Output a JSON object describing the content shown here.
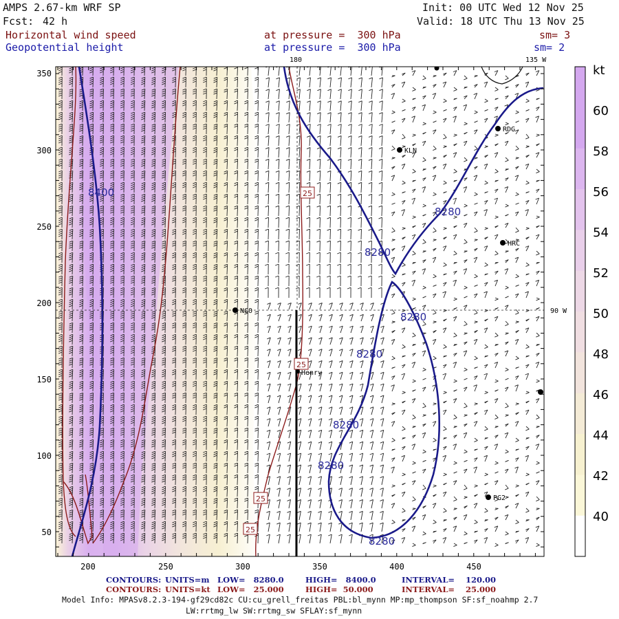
{
  "header": {
    "model": "AMPS 2.67-km WRF SP",
    "fcst_label": "Fcst:",
    "fcst_value": "42 h",
    "init": "Init: 00 UTC Wed 12 Nov 25",
    "valid": "Valid: 18 UTC Thu 13 Nov 25",
    "field1": "Horizontal wind speed",
    "field2": "Geopotential height",
    "level1": "at pressure =  300 hPa",
    "level2": "at pressure =  300 hPa",
    "sm1": "sm= 3",
    "sm2": "sm= 2"
  },
  "map": {
    "y_ticks": [
      "350",
      "300",
      "250",
      "200",
      "150",
      "100",
      "50"
    ],
    "x_ticks": [
      "200",
      "250",
      "300",
      "350",
      "400",
      "450"
    ],
    "lon_labels": [
      "180",
      "135 W",
      "90 W"
    ],
    "stations": [
      {
        "name": "KLN"
      },
      {
        "name": "RDG"
      },
      {
        "name": "HRC"
      },
      {
        "name": "NCO"
      },
      {
        "name": "Henry"
      },
      {
        "name": "PG2"
      }
    ],
    "height_labels": [
      "8400",
      "8280",
      "8280",
      "8280",
      "8280",
      "8280",
      "8280",
      "8280"
    ],
    "speed_labels": [
      "25",
      "25",
      "25",
      "25"
    ]
  },
  "colorbar": {
    "unit": "kt",
    "labels": [
      "60",
      "58",
      "56",
      "54",
      "52",
      "50",
      "48",
      "46",
      "44",
      "42",
      "40"
    ],
    "colors": [
      "#d4a8ef",
      "#dcb6ef",
      "#e3c3ed",
      "#e9cfea",
      "#edd8e6",
      "#f0dee2",
      "#f2e4dd",
      "#f4ebd6",
      "#f7f1d0",
      "#fbf7d8",
      "#ffffff"
    ]
  },
  "footer": {
    "c1_label": "CONTOURS:",
    "c1_units": "UNITS=m",
    "c1_low": "LOW=   8280.0",
    "c1_high": "HIGH=   8400.0",
    "c1_int": "INTERVAL=    120.00",
    "c2_label": "CONTOURS:",
    "c2_units": "UNITS=kt",
    "c2_low": "LOW=   25.000",
    "c2_high": "HIGH=  50.000",
    "c2_int": "INTERVAL=    25.000",
    "model_info": "Model Info: MPASv8.2.3-194-gf29cd82c CU:cu_grell_freitas PBL:bl_mynn MP:mp_thompson SF:sf_noahmp 2.7",
    "model_info2": "LW:rrtmg_lw SW:rrtmg_sw SFLAY:sf_mynn"
  }
}
